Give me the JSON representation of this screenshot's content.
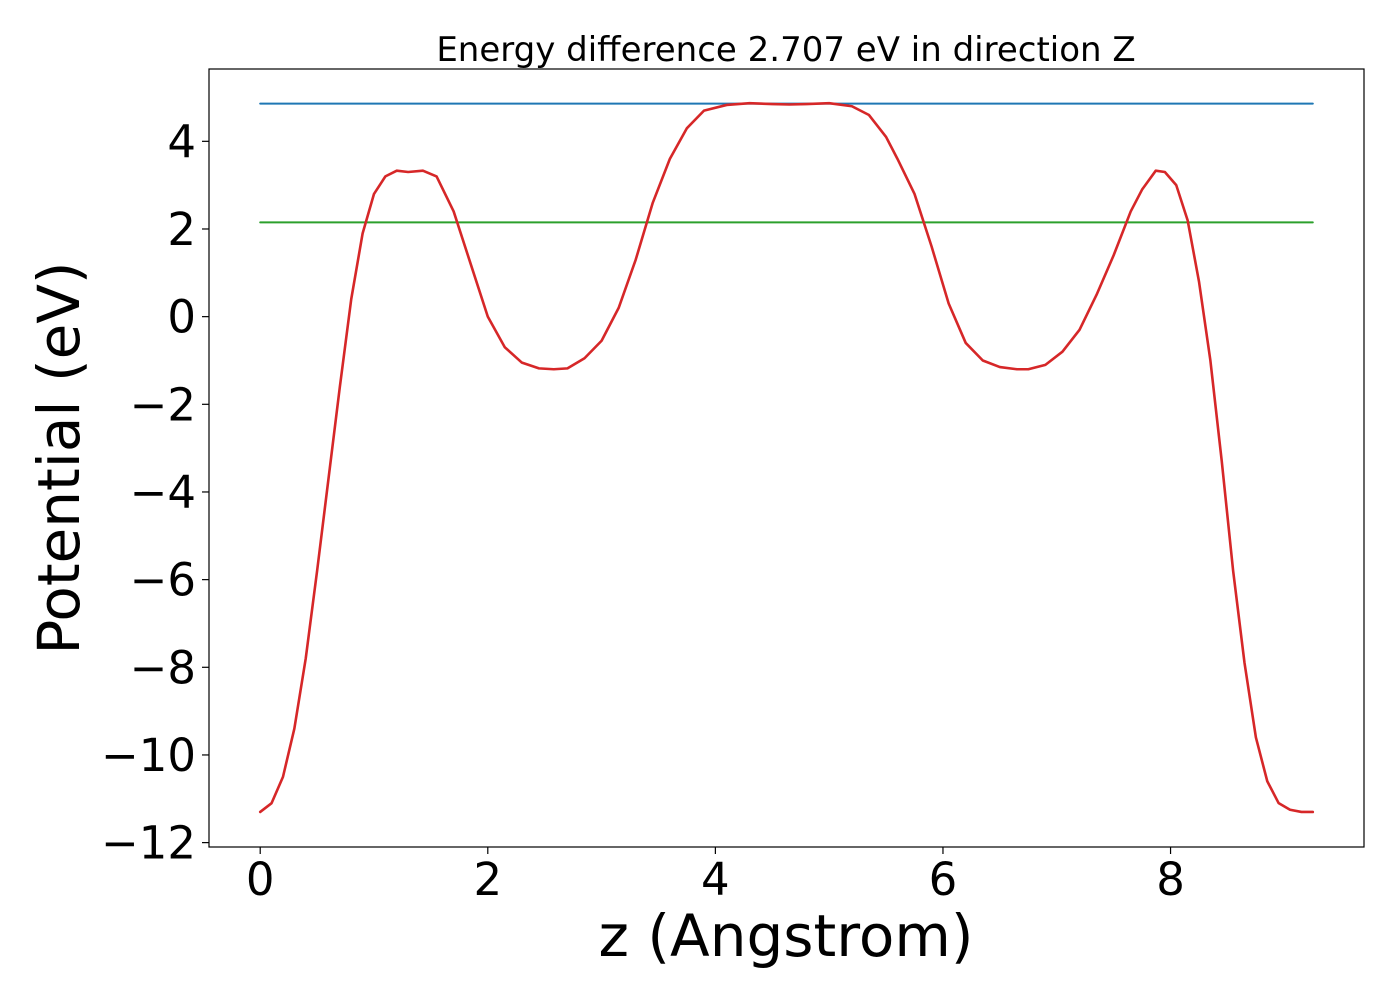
{
  "chart_data": {
    "type": "line",
    "title": "Energy difference 2.707 eV in direction Z",
    "xlabel": "z (Angstrom)",
    "ylabel": "Potential (eV)",
    "xlim": [
      -0.45,
      9.7
    ],
    "ylim": [
      -12.1,
      5.65
    ],
    "xticks": [
      0,
      2,
      4,
      6,
      8
    ],
    "xtick_labels": [
      "0",
      "2",
      "4",
      "6",
      "8"
    ],
    "yticks": [
      4,
      2,
      0,
      -2,
      -4,
      -6,
      -8,
      -10,
      -12
    ],
    "ytick_labels": [
      "4",
      "2",
      "0",
      "−2",
      "−4",
      "−6",
      "−8",
      "−10",
      "−12"
    ],
    "grid": false,
    "series": [
      {
        "color": "#1f77b4",
        "x": [
          0,
          9.25
        ],
        "y": [
          4.86,
          4.86
        ]
      },
      {
        "color": "#2ca02c",
        "x": [
          0,
          9.25
        ],
        "y": [
          2.15,
          2.15
        ]
      },
      {
        "color": "#d62728",
        "x": [
          0.0,
          0.1,
          0.2,
          0.3,
          0.4,
          0.5,
          0.6,
          0.7,
          0.8,
          0.9,
          1.0,
          1.1,
          1.2,
          1.3,
          1.43,
          1.55,
          1.7,
          1.85,
          2.0,
          2.15,
          2.3,
          2.45,
          2.58,
          2.7,
          2.85,
          3.0,
          3.15,
          3.3,
          3.45,
          3.6,
          3.75,
          3.9,
          4.1,
          4.3,
          4.5,
          4.65,
          4.8,
          5.0,
          5.2,
          5.35,
          5.5,
          5.6,
          5.75,
          5.9,
          6.05,
          6.2,
          6.35,
          6.5,
          6.65,
          6.75,
          6.9,
          7.05,
          7.2,
          7.35,
          7.5,
          7.65,
          7.75,
          7.87,
          7.95,
          8.05,
          8.15,
          8.25,
          8.35,
          8.45,
          8.55,
          8.65,
          8.75,
          8.85,
          8.95,
          9.05,
          9.15,
          9.25
        ],
        "y": [
          -11.3,
          -11.1,
          -10.5,
          -9.4,
          -7.8,
          -5.8,
          -3.7,
          -1.6,
          0.4,
          1.9,
          2.8,
          3.2,
          3.33,
          3.3,
          3.33,
          3.2,
          2.4,
          1.2,
          0.0,
          -0.7,
          -1.05,
          -1.18,
          -1.2,
          -1.18,
          -0.95,
          -0.55,
          0.2,
          1.3,
          2.6,
          3.6,
          4.3,
          4.7,
          4.83,
          4.87,
          4.85,
          4.84,
          4.85,
          4.87,
          4.8,
          4.6,
          4.1,
          3.6,
          2.8,
          1.6,
          0.3,
          -0.6,
          -1.0,
          -1.15,
          -1.2,
          -1.2,
          -1.1,
          -0.8,
          -0.3,
          0.5,
          1.4,
          2.4,
          2.9,
          3.33,
          3.3,
          3.0,
          2.2,
          0.8,
          -1.0,
          -3.3,
          -5.8,
          -7.9,
          -9.6,
          -10.6,
          -11.1,
          -11.25,
          -11.3,
          -11.3
        ]
      }
    ]
  }
}
